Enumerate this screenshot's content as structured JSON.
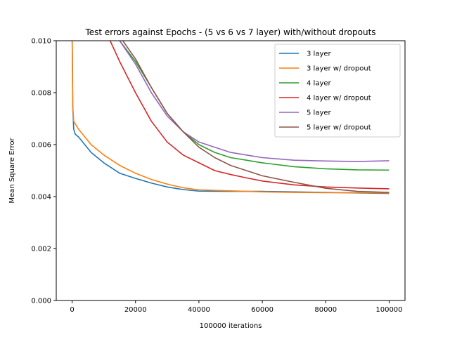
{
  "chart_data": {
    "type": "line",
    "title": "Test errors against Epochs - (5 vs 6 vs 7 layer) with/without dropouts",
    "xlabel": "100000 iterations",
    "ylabel": "Mean Square Error",
    "xlim": [
      -5000,
      105000
    ],
    "ylim": [
      0.0,
      0.01
    ],
    "xticks": [
      0,
      20000,
      40000,
      60000,
      80000,
      100000
    ],
    "xtick_labels": [
      "0",
      "20000",
      "40000",
      "60000",
      "80000",
      "100000"
    ],
    "yticks": [
      0.0,
      0.002,
      0.004,
      0.006,
      0.008,
      0.01
    ],
    "ytick_labels": [
      "0.000",
      "0.002",
      "0.004",
      "0.006",
      "0.008",
      "0.010"
    ],
    "grid": false,
    "legend_position": "top-right",
    "series": [
      {
        "name": "3 layer",
        "color": "#1f77b4",
        "x": [
          0,
          200,
          500,
          1000,
          2000,
          4000,
          6000,
          10000,
          15000,
          20000,
          25000,
          30000,
          35000,
          40000,
          50000,
          60000,
          70000,
          80000,
          90000,
          100000
        ],
        "y": [
          0.0105,
          0.0075,
          0.0066,
          0.0064,
          0.0063,
          0.006,
          0.0057,
          0.0053,
          0.0049,
          0.0047,
          0.00452,
          0.00437,
          0.00427,
          0.00421,
          0.0042,
          0.0042,
          0.00418,
          0.00416,
          0.00414,
          0.00412
        ]
      },
      {
        "name": "3 layer w/ dropout",
        "color": "#ff7f0e",
        "x": [
          0,
          200,
          500,
          1000,
          2000,
          4000,
          6000,
          10000,
          15000,
          20000,
          25000,
          30000,
          35000,
          40000,
          50000,
          60000,
          70000,
          80000,
          90000,
          100000
        ],
        "y": [
          0.0105,
          0.0075,
          0.0069,
          0.0068,
          0.0066,
          0.0063,
          0.006,
          0.0056,
          0.0052,
          0.0049,
          0.00466,
          0.00448,
          0.00434,
          0.00426,
          0.00422,
          0.00418,
          0.00416,
          0.00415,
          0.00415,
          0.00414
        ]
      },
      {
        "name": "4 layer",
        "color": "#2ca02c",
        "x": [
          15000,
          20000,
          25000,
          30000,
          35000,
          40000,
          45000,
          50000,
          55000,
          60000,
          70000,
          80000,
          90000,
          100000
        ],
        "y": [
          0.01,
          0.0092,
          0.0082,
          0.0072,
          0.0065,
          0.006,
          0.0057,
          0.0055,
          0.0054,
          0.0053,
          0.00515,
          0.00507,
          0.00503,
          0.00502
        ]
      },
      {
        "name": "4 layer w/ dropout",
        "color": "#d62728",
        "x": [
          12000,
          15000,
          20000,
          25000,
          30000,
          35000,
          40000,
          45000,
          50000,
          55000,
          60000,
          70000,
          80000,
          90000,
          100000
        ],
        "y": [
          0.01,
          0.0092,
          0.008,
          0.0069,
          0.0061,
          0.0056,
          0.0053,
          0.005,
          0.00485,
          0.00472,
          0.0046,
          0.00445,
          0.00437,
          0.00433,
          0.0043
        ]
      },
      {
        "name": "5 layer",
        "color": "#9467bd",
        "x": [
          15000,
          20000,
          25000,
          30000,
          35000,
          40000,
          45000,
          50000,
          55000,
          60000,
          70000,
          80000,
          90000,
          100000
        ],
        "y": [
          0.01,
          0.0091,
          0.008,
          0.0071,
          0.0065,
          0.0061,
          0.0059,
          0.0057,
          0.0056,
          0.0055,
          0.0054,
          0.00537,
          0.00535,
          0.00538
        ]
      },
      {
        "name": "5 layer w/ dropout",
        "color": "#8c564b",
        "x": [
          16000,
          20000,
          25000,
          30000,
          35000,
          40000,
          45000,
          50000,
          55000,
          60000,
          70000,
          80000,
          90000,
          100000
        ],
        "y": [
          0.01,
          0.0093,
          0.0082,
          0.0072,
          0.0065,
          0.0059,
          0.0055,
          0.0052,
          0.005,
          0.0048,
          0.00455,
          0.00432,
          0.0042,
          0.00416
        ]
      }
    ]
  }
}
